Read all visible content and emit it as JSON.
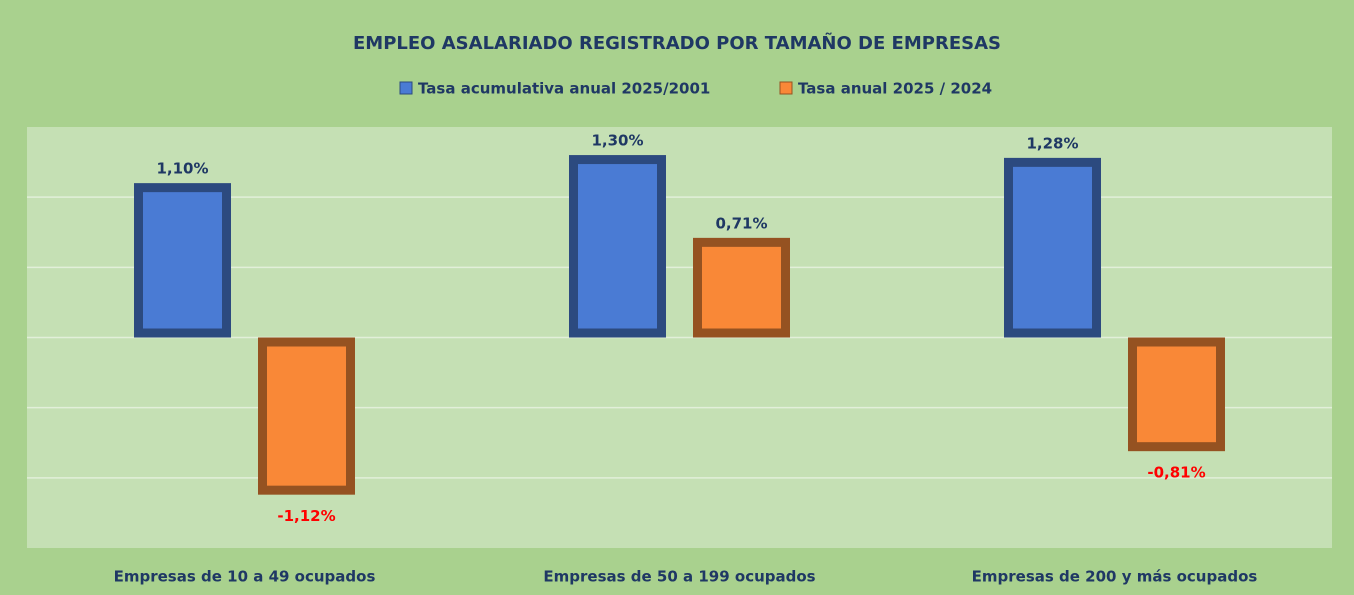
{
  "chart_data": {
    "type": "bar",
    "title": "EMPLEO ASALARIADO REGISTRADO POR TAMAÑO DE EMPRESAS",
    "categories": [
      "Empresas de 10 a 49 ocupados",
      "Empresas de 50 a 199 ocupados",
      "Empresas de 200 y más ocupados"
    ],
    "series": [
      {
        "name": "Tasa acumulativa anual 2025/2001",
        "color": "#4a7bd4",
        "values": [
          1.1,
          1.3,
          1.28
        ],
        "value_labels": [
          "1,10%",
          "1,30%",
          "1,28%"
        ]
      },
      {
        "name": "Tasa anual 2025 / 2024",
        "color": "#f98837",
        "values": [
          -1.12,
          0.71,
          -0.81
        ],
        "value_labels": [
          "-1,12%",
          "0,71%",
          "-0,81%"
        ]
      }
    ],
    "ylim": [
      -1.5,
      1.5
    ],
    "yticks": [
      -1,
      -0.5,
      0,
      0.5,
      1
    ],
    "grid": true,
    "legend": "top",
    "label_color": "#1f3864",
    "negative_label_color": "#ff0000"
  }
}
